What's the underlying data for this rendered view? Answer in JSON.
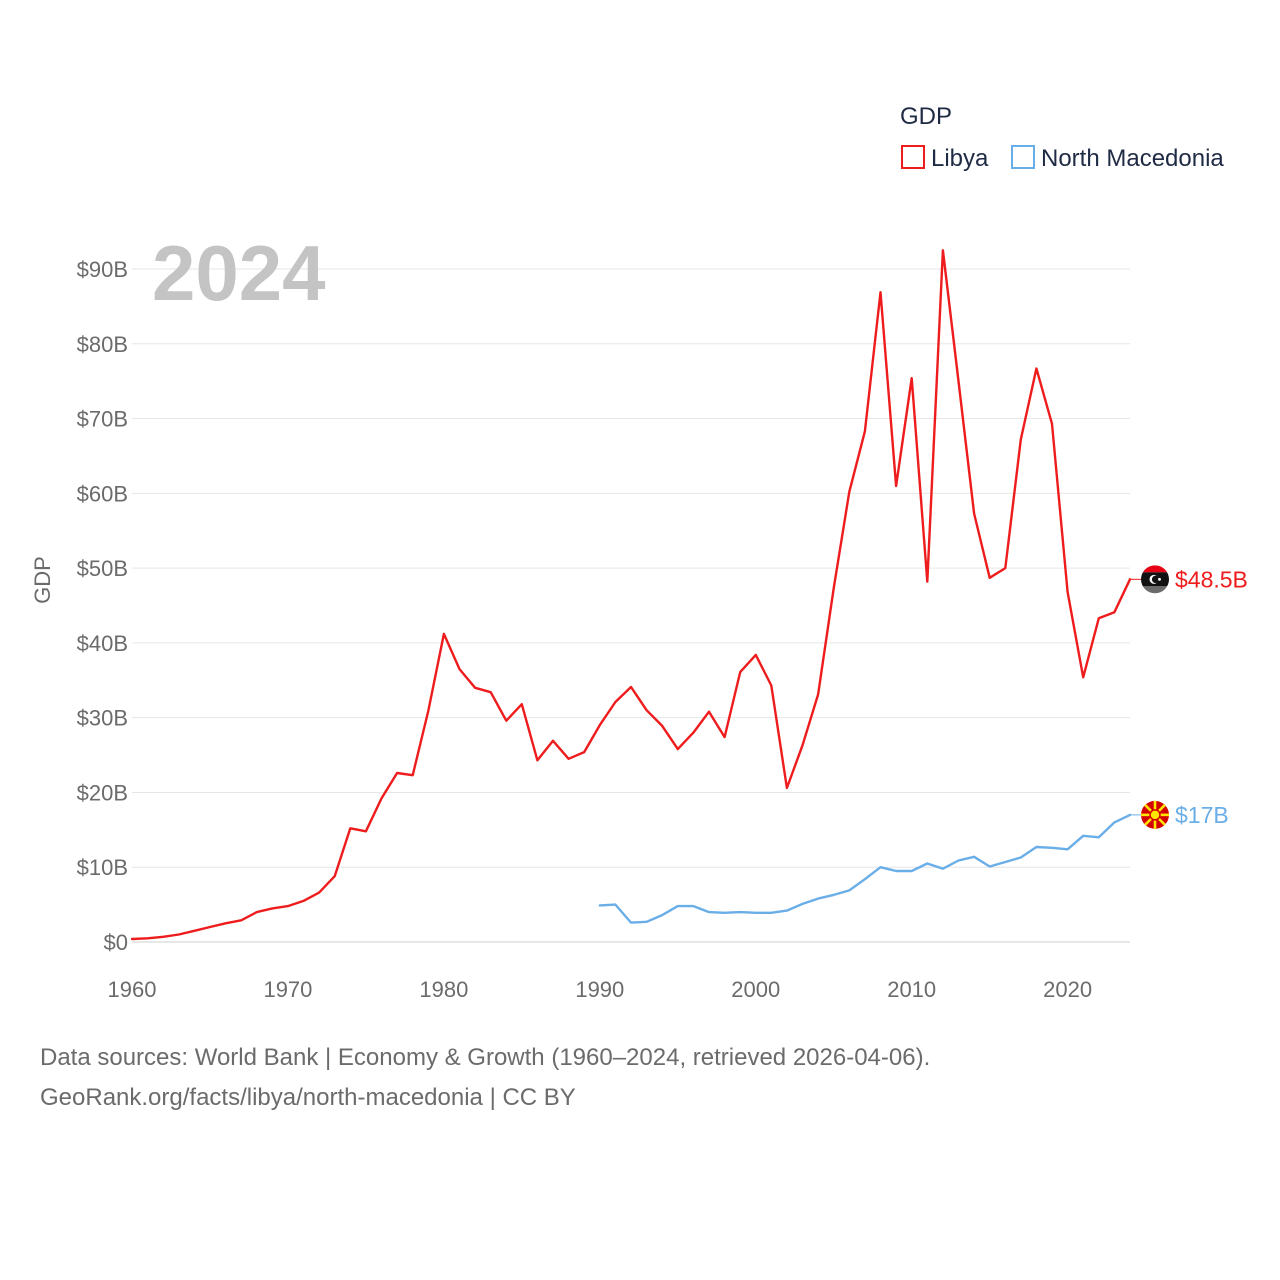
{
  "chart_data": {
    "type": "line",
    "ylabel": "GDP",
    "year_label": "2024",
    "legend_title": "GDP",
    "ylim": [
      0,
      90000000000
    ],
    "xlim": [
      1960,
      2024
    ],
    "y_ticks": [
      0,
      10000000000,
      20000000000,
      30000000000,
      40000000000,
      50000000000,
      60000000000,
      70000000000,
      80000000000,
      90000000000
    ],
    "y_tick_labels": [
      "$0",
      "$10B",
      "$20B",
      "$30B",
      "$40B",
      "$50B",
      "$60B",
      "$70B",
      "$80B",
      "$90B"
    ],
    "x_ticks": [
      1960,
      1970,
      1980,
      1990,
      2000,
      2010,
      2020
    ],
    "x_tick_labels": [
      "1960",
      "1970",
      "1980",
      "1990",
      "2000",
      "2010",
      "2020"
    ],
    "series": [
      {
        "name": "Libya",
        "color": "#ee1c1c",
        "end_label": "$48.5B",
        "flag": "libya-flag-icon",
        "x": [
          1960,
          1961,
          1962,
          1963,
          1964,
          1965,
          1966,
          1967,
          1968,
          1969,
          1970,
          1971,
          1972,
          1973,
          1974,
          1975,
          1976,
          1977,
          1978,
          1979,
          1980,
          1981,
          1982,
          1983,
          1984,
          1985,
          1986,
          1987,
          1988,
          1989,
          1990,
          1991,
          1992,
          1993,
          1994,
          1995,
          1996,
          1997,
          1998,
          1999,
          2000,
          2001,
          2002,
          2003,
          2004,
          2005,
          2006,
          2007,
          2008,
          2009,
          2010,
          2011,
          2012,
          2013,
          2014,
          2015,
          2016,
          2017,
          2018,
          2019,
          2020,
          2021,
          2022,
          2023,
          2024
        ],
        "values": [
          0.4,
          0.5,
          0.7,
          1.0,
          1.5,
          2.0,
          2.5,
          2.9,
          4.0,
          4.5,
          4.8,
          5.5,
          6.6,
          8.8,
          15.2,
          14.8,
          19.2,
          22.6,
          22.3,
          30.9,
          41.2,
          36.5,
          34.0,
          33.4,
          29.6,
          31.8,
          24.3,
          26.9,
          24.5,
          25.4,
          29.0,
          32.1,
          34.1,
          31.0,
          28.9,
          25.8,
          28.0,
          30.8,
          27.4,
          36.1,
          38.4,
          34.3,
          20.6,
          26.3,
          33.1,
          47.3,
          60.2,
          68.3,
          86.9,
          61.0,
          75.4,
          48.2,
          92.5,
          75.0,
          57.3,
          48.7,
          50.0,
          67.2,
          76.7,
          69.3,
          46.8,
          35.4,
          43.3,
          44.1,
          48.5
        ]
      },
      {
        "name": "North Macedonia",
        "color": "#6aaee8",
        "end_label": "$17B",
        "flag": "north-macedonia-flag-icon",
        "x": [
          1990,
          1991,
          1992,
          1993,
          1994,
          1995,
          1996,
          1997,
          1998,
          1999,
          2000,
          2001,
          2002,
          2003,
          2004,
          2005,
          2006,
          2007,
          2008,
          2009,
          2010,
          2011,
          2012,
          2013,
          2014,
          2015,
          2016,
          2017,
          2018,
          2019,
          2020,
          2021,
          2022,
          2023,
          2024
        ],
        "values": [
          4.9,
          5.0,
          2.6,
          2.7,
          3.6,
          4.8,
          4.8,
          4.0,
          3.9,
          4.0,
          3.9,
          3.9,
          4.2,
          5.1,
          5.8,
          6.3,
          6.9,
          8.4,
          10.0,
          9.5,
          9.5,
          10.5,
          9.8,
          10.9,
          11.4,
          10.1,
          10.7,
          11.3,
          12.7,
          12.6,
          12.4,
          14.2,
          14.0,
          16.0,
          17.0
        ]
      }
    ]
  },
  "source": {
    "line1": "Data sources: World Bank | Economy & Growth (1960–2024, retrieved 2026-04-06).",
    "line2": "GeoRank.org/facts/libya/north-macedonia | CC BY"
  }
}
